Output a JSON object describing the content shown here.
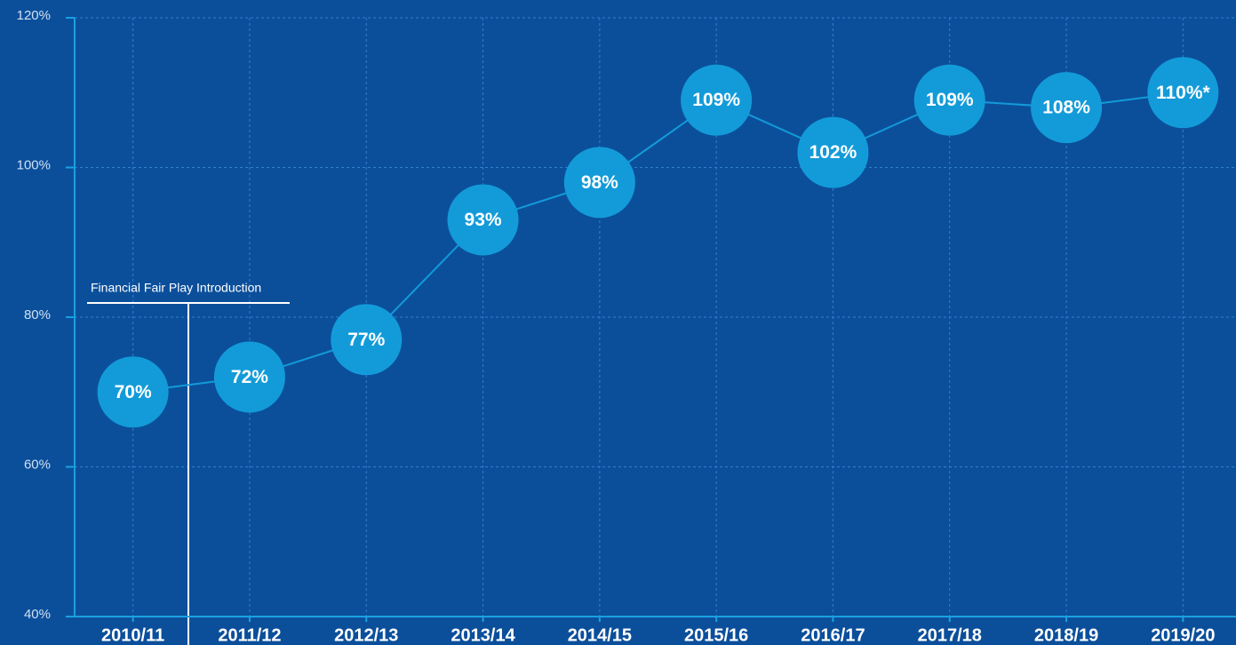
{
  "chart_data": {
    "type": "line",
    "categories": [
      "2010/11",
      "2011/12",
      "2012/13",
      "2013/14",
      "2014/15",
      "2015/16",
      "2016/17",
      "2017/18",
      "2018/19",
      "2019/20"
    ],
    "values": [
      70,
      72,
      77,
      93,
      98,
      109,
      102,
      109,
      108,
      110
    ],
    "value_labels": [
      "70%",
      "72%",
      "77%",
      "93%",
      "98%",
      "109%",
      "102%",
      "109%",
      "108%",
      "110%*"
    ],
    "color": "#139bd9",
    "ylim": [
      40,
      120
    ],
    "yticks": [
      {
        "value": 40,
        "label": "40%"
      },
      {
        "value": 60,
        "label": "60%"
      },
      {
        "value": 80,
        "label": "80%"
      },
      {
        "value": 100,
        "label": "100%"
      },
      {
        "value": 120,
        "label": "120%"
      }
    ],
    "grid": true,
    "annotation": "Financial Fair Play Introduction"
  }
}
